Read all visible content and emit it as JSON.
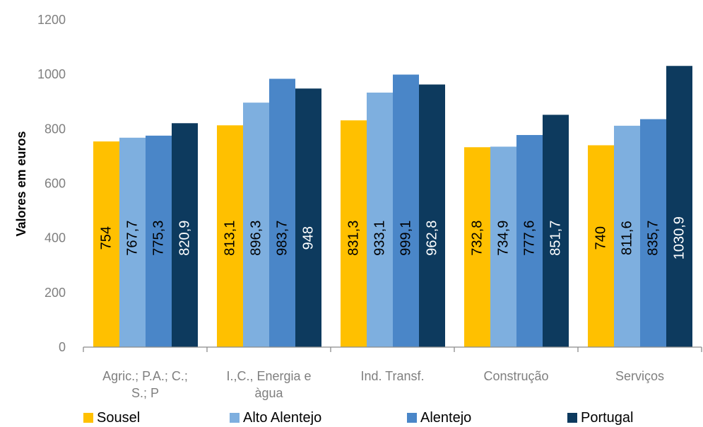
{
  "chart_data": {
    "type": "bar",
    "ylabel": "Valores em euros",
    "ylim": [
      0,
      1200
    ],
    "yticks": [
      "0",
      "200",
      "400",
      "600",
      "800",
      "1000",
      "1200"
    ],
    "categories": [
      [
        "Agric.; P.A.; C.;",
        "S.; P"
      ],
      [
        "I.,C., Energia e",
        "àgua"
      ],
      [
        "Ind. Transf."
      ],
      [
        "Construção"
      ],
      [
        "Serviços"
      ]
    ],
    "series": [
      {
        "name": "Sousel",
        "color": "#FFC000",
        "values": [
          754,
          813.1,
          831.3,
          732.8,
          740
        ],
        "labels": [
          "754",
          "813,1",
          "831,3",
          "732,8",
          "740"
        ]
      },
      {
        "name": "Alto Alentejo",
        "color": "#7EAFDF",
        "values": [
          767.7,
          896.3,
          933.1,
          734.9,
          811.6
        ],
        "labels": [
          "767,7",
          "896,3",
          "933,1",
          "734,9",
          "811,6"
        ]
      },
      {
        "name": "Alentejo",
        "color": "#4A86C8",
        "values": [
          775.3,
          983.7,
          999.1,
          777.6,
          835.7
        ],
        "labels": [
          "775,3",
          "983,7",
          "999,1",
          "777,6",
          "835,7"
        ]
      },
      {
        "name": "Portugal",
        "color": "#0D3A5E",
        "values": [
          820.9,
          948,
          962.8,
          851.7,
          1030.9
        ],
        "labels": [
          "820,9",
          "948",
          "962,8",
          "851,7",
          "1030,9"
        ]
      }
    ],
    "legend_position": "bottom",
    "grid": false
  }
}
